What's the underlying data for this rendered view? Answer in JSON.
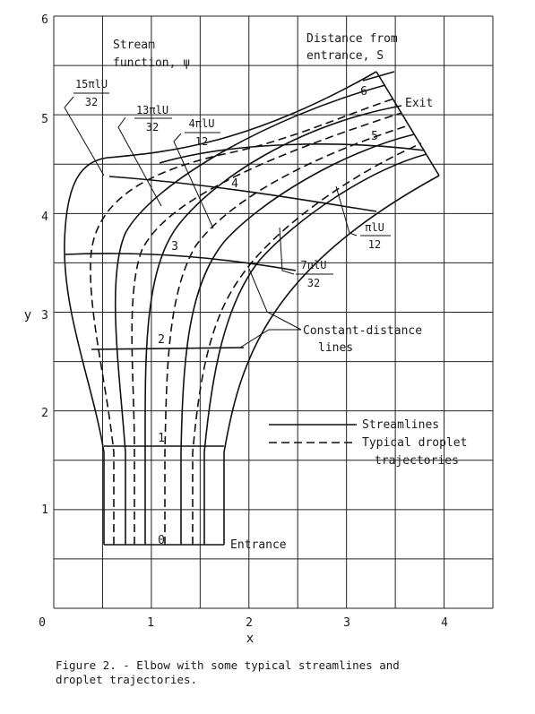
{
  "figure": {
    "xlabel": "x",
    "ylabel": "y",
    "x_ticks": [
      "0",
      "1",
      "2",
      "3",
      "4"
    ],
    "y_ticks": [
      "1",
      "2",
      "3",
      "4",
      "5",
      "6"
    ],
    "xlim": [
      0,
      4.5
    ],
    "ylim": [
      0,
      6
    ],
    "grid": true,
    "annotations": {
      "stream_function": [
        "Stream",
        "function, ψ"
      ],
      "distance": [
        "Distance from",
        "entrance, S"
      ],
      "exit": "Exit",
      "entrance": "Entrance",
      "constant_distance": [
        "Constant-distance",
        "lines"
      ]
    },
    "streamline_values": [
      {
        "num": "15πlU",
        "den": "32"
      },
      {
        "num": "13πlU",
        "den": "32"
      },
      {
        "num": "4πlU",
        "den": "12"
      },
      {
        "num": "7πlU",
        "den": "32"
      },
      {
        "num": "πlU",
        "den": "12"
      }
    ],
    "distance_labels": [
      "0",
      "1",
      "2",
      "3",
      "4",
      "5",
      "6"
    ],
    "legend": [
      {
        "label": "Streamlines",
        "style": "solid"
      },
      {
        "label": "Typical droplet trajectories",
        "lines": [
          "Typical droplet",
          "trajectories"
        ],
        "style": "dashed"
      }
    ]
  },
  "caption": "Figure 2. - Elbow with some typical streamlines and\n droplet trajectories."
}
